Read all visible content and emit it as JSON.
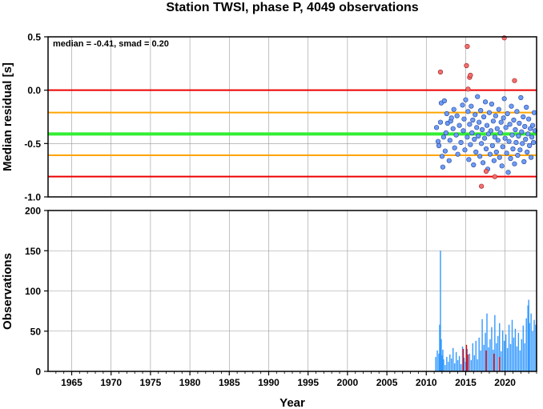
{
  "title": "Station TWSI, phase P, 4049 observations",
  "annotation": "median = -0.41, smad = 0.20",
  "xlabel": "Year",
  "colors": {
    "zero_line": "#ee0000",
    "median_line": "#33ee33",
    "smad_line": "#ffa500",
    "point_in": "#6e9cf2",
    "point_out": "#f26e6e",
    "bar_normal": "#3399ff",
    "bar_highlight": "#ee0000",
    "grid": "#999999"
  },
  "chart_data": [
    {
      "type": "scatter",
      "ylabel": "Median residual [s]",
      "xlim": [
        1962,
        2024
      ],
      "ylim": [
        -1.0,
        0.5
      ],
      "x_ticks": [
        "1965",
        "1970",
        "1975",
        "1980",
        "1985",
        "1990",
        "1995",
        "2000",
        "2005",
        "2010",
        "2015",
        "2020"
      ],
      "x_tick_values": [
        1965,
        1970,
        1975,
        1980,
        1985,
        1990,
        1995,
        2000,
        2005,
        2010,
        2015,
        2020
      ],
      "y_ticks": [
        "0.5",
        "0.0",
        "-0.5",
        "-1.0"
      ],
      "y_tick_values": [
        0.5,
        0.0,
        -0.5,
        -1.0
      ],
      "median": -0.41,
      "smad": 0.2,
      "reference_lines": [
        {
          "name": "zero",
          "y": 0.0,
          "color": "#ee0000"
        },
        {
          "name": "median-plus-smad",
          "y": -0.21,
          "color": "#ffa500"
        },
        {
          "name": "median",
          "y": -0.41,
          "color": "#33ee33"
        },
        {
          "name": "median-minus-smad",
          "y": -0.61,
          "color": "#ffa500"
        },
        {
          "name": "median-minus-2smad",
          "y": -0.81,
          "color": "#ee0000"
        }
      ],
      "outliers": [
        [
          2011.8,
          0.17
        ],
        [
          2015.2,
          0.41
        ],
        [
          2015.1,
          0.23
        ],
        [
          2015.5,
          0.12
        ],
        [
          2015.6,
          0.14
        ],
        [
          2015.3,
          0.01
        ],
        [
          2019.9,
          0.49
        ],
        [
          2021.2,
          0.09
        ],
        [
          2017.0,
          -0.9
        ],
        [
          2017.6,
          -0.76
        ],
        [
          2018.7,
          -0.81
        ]
      ],
      "points": [
        [
          2011.3,
          -0.35
        ],
        [
          2011.5,
          -0.48
        ],
        [
          2011.6,
          -0.52
        ],
        [
          2011.8,
          -0.3
        ],
        [
          2011.9,
          -0.12
        ],
        [
          2012.0,
          -0.62
        ],
        [
          2012.1,
          -0.72
        ],
        [
          2012.2,
          -0.44
        ],
        [
          2012.3,
          -0.1
        ],
        [
          2012.4,
          -0.57
        ],
        [
          2012.5,
          -0.4
        ],
        [
          2012.6,
          -0.22
        ],
        [
          2012.7,
          -0.31
        ],
        [
          2012.9,
          -0.66
        ],
        [
          2013.0,
          -0.47
        ],
        [
          2013.1,
          -0.29
        ],
        [
          2013.2,
          -0.26
        ],
        [
          2013.4,
          -0.36
        ],
        [
          2013.5,
          -0.18
        ],
        [
          2013.6,
          -0.54
        ],
        [
          2013.8,
          -0.42
        ],
        [
          2013.9,
          -0.24
        ],
        [
          2014.0,
          -0.6
        ],
        [
          2014.2,
          -0.33
        ],
        [
          2014.4,
          -0.49
        ],
        [
          2014.6,
          -0.14
        ],
        [
          2014.7,
          -0.38
        ],
        [
          2014.8,
          -0.27
        ],
        [
          2014.9,
          -0.56
        ],
        [
          2015.0,
          -0.09
        ],
        [
          2015.2,
          -0.44
        ],
        [
          2015.3,
          -0.2
        ],
        [
          2015.4,
          -0.65
        ],
        [
          2015.5,
          -0.32
        ],
        [
          2015.6,
          -0.51
        ],
        [
          2015.7,
          -0.15
        ],
        [
          2015.8,
          -0.4
        ],
        [
          2015.9,
          -0.28
        ],
        [
          2016.0,
          -0.7
        ],
        [
          2016.1,
          -0.46
        ],
        [
          2016.2,
          -0.23
        ],
        [
          2016.3,
          -0.58
        ],
        [
          2016.4,
          -0.35
        ],
        [
          2016.5,
          -0.06
        ],
        [
          2016.6,
          -0.43
        ],
        [
          2016.7,
          -0.3
        ],
        [
          2016.8,
          -0.62
        ],
        [
          2016.9,
          -0.19
        ],
        [
          2017.0,
          -0.5
        ],
        [
          2017.1,
          -0.37
        ],
        [
          2017.2,
          -0.68
        ],
        [
          2017.3,
          -0.25
        ],
        [
          2017.4,
          -0.45
        ],
        [
          2017.5,
          -0.11
        ],
        [
          2017.6,
          -0.55
        ],
        [
          2017.7,
          -0.33
        ],
        [
          2017.8,
          -0.74
        ],
        [
          2017.9,
          -0.41
        ],
        [
          2018.0,
          -0.21
        ],
        [
          2018.1,
          -0.6
        ],
        [
          2018.2,
          -0.38
        ],
        [
          2018.3,
          -0.13
        ],
        [
          2018.4,
          -0.52
        ],
        [
          2018.5,
          -0.29
        ],
        [
          2018.6,
          -0.66
        ],
        [
          2018.7,
          -0.44
        ],
        [
          2018.8,
          -0.24
        ],
        [
          2018.9,
          -0.58
        ],
        [
          2019.0,
          -0.36
        ],
        [
          2019.1,
          -0.47
        ],
        [
          2019.2,
          -0.18
        ],
        [
          2019.3,
          -0.63
        ],
        [
          2019.4,
          -0.4
        ],
        [
          2019.5,
          -0.3
        ],
        [
          2019.6,
          -0.71
        ],
        [
          2019.7,
          -0.53
        ],
        [
          2019.8,
          -0.26
        ],
        [
          2019.9,
          -0.08
        ],
        [
          2020.0,
          -0.45
        ],
        [
          2020.1,
          -0.35
        ],
        [
          2020.2,
          -0.59
        ],
        [
          2020.3,
          -0.22
        ],
        [
          2020.4,
          -0.77
        ],
        [
          2020.5,
          -0.48
        ],
        [
          2020.6,
          -0.32
        ],
        [
          2020.7,
          -0.64
        ],
        [
          2020.8,
          -0.15
        ],
        [
          2020.9,
          -0.42
        ],
        [
          2021.0,
          -0.55
        ],
        [
          2021.1,
          -0.28
        ],
        [
          2021.2,
          -0.69
        ],
        [
          2021.3,
          -0.37
        ],
        [
          2021.4,
          -0.49
        ],
        [
          2021.5,
          -0.2
        ],
        [
          2021.6,
          -0.61
        ],
        [
          2021.7,
          -0.43
        ],
        [
          2021.8,
          -0.31
        ],
        [
          2021.9,
          -0.56
        ],
        [
          2022.0,
          -0.07
        ],
        [
          2022.1,
          -0.39
        ],
        [
          2022.2,
          -0.5
        ],
        [
          2022.3,
          -0.25
        ],
        [
          2022.4,
          -0.67
        ],
        [
          2022.5,
          -0.34
        ],
        [
          2022.6,
          -0.46
        ],
        [
          2022.7,
          -0.16
        ],
        [
          2022.8,
          -0.58
        ],
        [
          2022.9,
          -0.41
        ],
        [
          2023.0,
          -0.27
        ],
        [
          2023.1,
          -0.52
        ],
        [
          2023.2,
          -0.36
        ],
        [
          2023.3,
          -0.63
        ],
        [
          2023.4,
          -0.44
        ],
        [
          2023.5,
          -0.33
        ],
        [
          2023.6,
          -0.49
        ],
        [
          2023.7,
          -0.21
        ],
        [
          2023.8,
          -0.38
        ]
      ]
    },
    {
      "type": "bar",
      "ylabel": "Observations",
      "xlim": [
        1962,
        2024
      ],
      "ylim": [
        0,
        200
      ],
      "x_ticks": [
        "1965",
        "1970",
        "1975",
        "1980",
        "1985",
        "1990",
        "1995",
        "2000",
        "2005",
        "2010",
        "2015",
        "2020"
      ],
      "x_tick_values": [
        1965,
        1970,
        1975,
        1980,
        1985,
        1990,
        1995,
        2000,
        2005,
        2010,
        2015,
        2020
      ],
      "y_ticks": [
        "200",
        "150",
        "100",
        "50",
        "0"
      ],
      "y_tick_values": [
        200,
        150,
        100,
        50,
        0
      ],
      "series": [
        {
          "color": "#3399ff",
          "values": [
            [
              2011.2,
              18
            ],
            [
              2011.4,
              26
            ],
            [
              2011.6,
              22
            ],
            [
              2011.7,
              58
            ],
            [
              2011.8,
              150
            ],
            [
              2011.9,
              40
            ],
            [
              2012.0,
              20
            ],
            [
              2012.1,
              27
            ],
            [
              2012.2,
              15
            ],
            [
              2012.4,
              8
            ],
            [
              2012.6,
              18
            ],
            [
              2012.8,
              12
            ],
            [
              2013.0,
              21
            ],
            [
              2013.2,
              16
            ],
            [
              2013.4,
              29
            ],
            [
              2013.6,
              10
            ],
            [
              2013.8,
              24
            ],
            [
              2014.0,
              14
            ],
            [
              2014.2,
              19
            ],
            [
              2014.4,
              9
            ],
            [
              2014.6,
              31
            ],
            [
              2014.8,
              17
            ],
            [
              2015.0,
              12
            ],
            [
              2015.2,
              28
            ],
            [
              2015.5,
              22
            ],
            [
              2015.7,
              14
            ],
            [
              2015.9,
              35
            ],
            [
              2016.1,
              20
            ],
            [
              2016.3,
              38
            ],
            [
              2016.5,
              15
            ],
            [
              2016.7,
              42
            ],
            [
              2016.9,
              26
            ],
            [
              2017.1,
              65
            ],
            [
              2017.3,
              33
            ],
            [
              2017.5,
              48
            ],
            [
              2017.7,
              72
            ],
            [
              2017.9,
              30
            ],
            [
              2018.1,
              40
            ],
            [
              2018.3,
              55
            ],
            [
              2018.5,
              27
            ],
            [
              2018.7,
              70
            ],
            [
              2018.9,
              35
            ],
            [
              2019.1,
              44
            ],
            [
              2019.3,
              60
            ],
            [
              2019.5,
              25
            ],
            [
              2019.7,
              51
            ],
            [
              2019.9,
              38
            ],
            [
              2020.1,
              46
            ],
            [
              2020.3,
              29
            ],
            [
              2020.5,
              58
            ],
            [
              2020.7,
              34
            ],
            [
              2020.9,
              64
            ],
            [
              2021.1,
              42
            ],
            [
              2021.3,
              53
            ],
            [
              2021.5,
              31
            ],
            [
              2021.7,
              48
            ],
            [
              2021.9,
              26
            ],
            [
              2022.1,
              40
            ],
            [
              2022.3,
              57
            ],
            [
              2022.5,
              35
            ],
            [
              2022.7,
              66
            ],
            [
              2022.9,
              82
            ],
            [
              2023.0,
              89
            ],
            [
              2023.1,
              60
            ],
            [
              2023.3,
              72
            ],
            [
              2023.5,
              50
            ],
            [
              2023.7,
              64
            ],
            [
              2023.9,
              58
            ]
          ]
        },
        {
          "color": "#ee0000",
          "values": [
            [
              2014.7,
              28
            ],
            [
              2015.1,
              33
            ],
            [
              2015.3,
              21
            ],
            [
              2017.6,
              26
            ],
            [
              2018.6,
              22
            ],
            [
              2019.3,
              18
            ]
          ]
        }
      ]
    }
  ]
}
